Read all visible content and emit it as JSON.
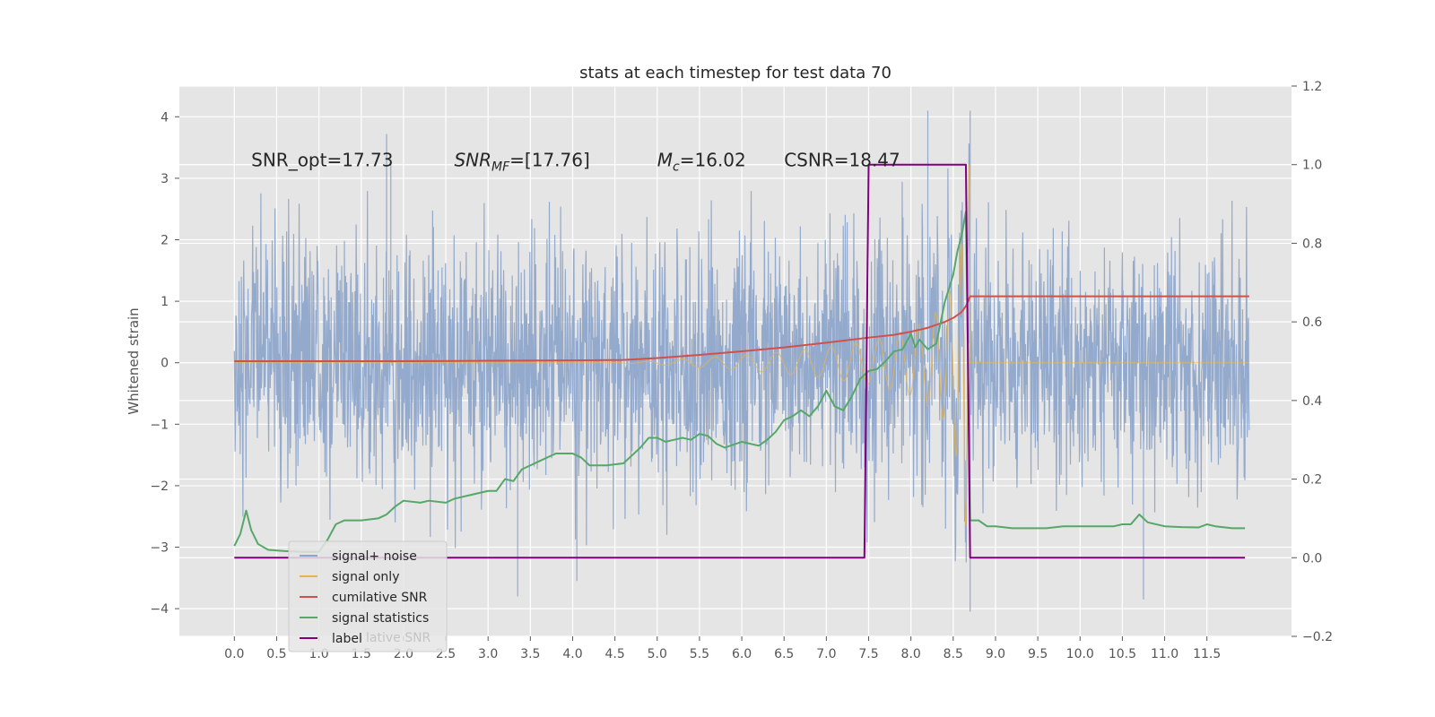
{
  "chart_data": {
    "type": "line",
    "title": "stats at each timestep for test data 70",
    "ylabel": "Whitened strain",
    "xlim": [
      -0.65,
      12.5
    ],
    "ylim": [
      -4.45,
      4.5
    ],
    "y2lim": [
      -0.2,
      1.2
    ],
    "grid": true,
    "legend_placement": "lower-left",
    "xticks": [
      0.0,
      0.5,
      1.0,
      1.5,
      2.0,
      2.5,
      3.0,
      3.5,
      4.0,
      4.5,
      5.0,
      5.5,
      6.0,
      6.5,
      7.0,
      7.5,
      8.0,
      8.5,
      9.0,
      9.5,
      10.0,
      10.5,
      11.0,
      11.5
    ],
    "xtick_labels": [
      "0.0",
      "0.5",
      "1.0",
      "1.5",
      "2.0",
      "2.5",
      "3.0",
      "3.5",
      "4.0",
      "4.5",
      "5.0",
      "5.5",
      "6.0",
      "6.5",
      "7.0",
      "7.5",
      "8.0",
      "8.5",
      "9.0",
      "9.5",
      "10.0",
      "10.5",
      "11.0",
      "11.5"
    ],
    "yticks": [
      -4,
      -3,
      -2,
      -1,
      0,
      1,
      2,
      3,
      4
    ],
    "ytick_labels": [
      "−4",
      "−3",
      "−2",
      "−1",
      "0",
      "1",
      "2",
      "3",
      "4"
    ],
    "y2ticks": [
      -0.2,
      0.0,
      0.2,
      0.4,
      0.6,
      0.8,
      1.0,
      1.2
    ],
    "y2tick_labels": [
      "−0.2",
      "0.0",
      "0.2",
      "0.4",
      "0.6",
      "0.8",
      "1.0",
      "1.2"
    ],
    "annotations": [
      {
        "text": "SNR_opt=17.73",
        "x": 0.2,
        "y": 3.3
      },
      {
        "text": "SNR_MF=[17.76]",
        "x": 2.6,
        "y": 3.3
      },
      {
        "text": "M_c=16.02",
        "x": 5.0,
        "y": 3.3
      },
      {
        "text": "CSNR=18.47",
        "x": 6.5,
        "y": 3.3
      }
    ],
    "noise_series": {
      "name": "signal+ noise",
      "color": "#8fa6cb",
      "x_start": 0.0,
      "x_end": 12.0,
      "typical_amplitude": 1.9,
      "max_peaks": [
        {
          "x": 1.8,
          "y": 3.72
        },
        {
          "x": 1.85,
          "y": 3.3
        },
        {
          "x": 3.35,
          "y": -3.8
        },
        {
          "x": 4.05,
          "y": -3.55
        },
        {
          "x": 6.0,
          "y": 1.05
        },
        {
          "x": 6.0,
          "y": -1.6
        },
        {
          "x": 8.2,
          "y": 4.1
        },
        {
          "x": 8.7,
          "y": 4.1
        },
        {
          "x": 8.7,
          "y": -4.05
        },
        {
          "x": 10.75,
          "y": -3.85
        }
      ]
    },
    "signal_envelope": {
      "name": "signal only",
      "color": "#e6b34d",
      "x": [
        4.5,
        5.0,
        5.5,
        6.0,
        6.5,
        7.0,
        7.5,
        7.8,
        8.0,
        8.2,
        8.4,
        8.5,
        8.6,
        8.65,
        8.7
      ],
      "amplitude": [
        0.0,
        0.03,
        0.08,
        0.12,
        0.18,
        0.25,
        0.35,
        0.45,
        0.55,
        0.7,
        0.95,
        1.3,
        2.0,
        2.7,
        3.4
      ]
    },
    "series": [
      {
        "name": "cumilative SNR",
        "color": "#d0504a",
        "axis": "right",
        "x": [
          0.0,
          1.0,
          2.0,
          3.0,
          4.0,
          4.6,
          5.0,
          5.5,
          6.0,
          6.5,
          7.0,
          7.5,
          7.8,
          8.0,
          8.2,
          8.4,
          8.5,
          8.6,
          8.65,
          8.7,
          9.0,
          10.0,
          11.0,
          12.0
        ],
        "values": [
          0.5,
          0.5,
          0.5,
          0.501,
          0.502,
          0.503,
          0.508,
          0.516,
          0.525,
          0.535,
          0.547,
          0.56,
          0.567,
          0.575,
          0.585,
          0.6,
          0.61,
          0.625,
          0.64,
          0.665,
          0.665,
          0.665,
          0.665,
          0.665
        ]
      },
      {
        "name": "signal statistics",
        "color": "#55a868",
        "axis": "right",
        "x": [
          0.0,
          0.07,
          0.14,
          0.2,
          0.28,
          0.4,
          0.6,
          0.8,
          1.0,
          1.1,
          1.2,
          1.3,
          1.5,
          1.7,
          1.8,
          1.9,
          2.0,
          2.2,
          2.3,
          2.5,
          2.6,
          2.8,
          3.0,
          3.1,
          3.2,
          3.3,
          3.4,
          3.5,
          3.6,
          3.8,
          4.0,
          4.1,
          4.2,
          4.4,
          4.6,
          4.8,
          4.9,
          5.0,
          5.1,
          5.2,
          5.3,
          5.4,
          5.5,
          5.6,
          5.7,
          5.8,
          6.0,
          6.1,
          6.2,
          6.3,
          6.4,
          6.5,
          6.6,
          6.7,
          6.8,
          6.9,
          7.0,
          7.05,
          7.1,
          7.2,
          7.3,
          7.4,
          7.5,
          7.6,
          7.7,
          7.8,
          7.9,
          8.0,
          8.05,
          8.1,
          8.2,
          8.3,
          8.4,
          8.5,
          8.55,
          8.6,
          8.65,
          8.7,
          8.8,
          8.9,
          9.0,
          9.2,
          9.4,
          9.6,
          9.8,
          10.0,
          10.2,
          10.4,
          10.5,
          10.6,
          10.7,
          10.8,
          11.0,
          11.2,
          11.4,
          11.5,
          11.6,
          11.8,
          11.95
        ],
        "values": [
          0.03,
          0.06,
          0.12,
          0.07,
          0.035,
          0.02,
          0.017,
          0.015,
          0.015,
          0.045,
          0.085,
          0.095,
          0.095,
          0.1,
          0.11,
          0.13,
          0.145,
          0.14,
          0.145,
          0.14,
          0.15,
          0.16,
          0.17,
          0.17,
          0.2,
          0.195,
          0.225,
          0.235,
          0.245,
          0.265,
          0.265,
          0.255,
          0.235,
          0.235,
          0.24,
          0.28,
          0.305,
          0.305,
          0.295,
          0.3,
          0.305,
          0.3,
          0.315,
          0.31,
          0.29,
          0.28,
          0.295,
          0.29,
          0.285,
          0.3,
          0.32,
          0.35,
          0.36,
          0.375,
          0.36,
          0.385,
          0.425,
          0.405,
          0.385,
          0.375,
          0.41,
          0.455,
          0.475,
          0.48,
          0.5,
          0.525,
          0.53,
          0.57,
          0.535,
          0.555,
          0.53,
          0.545,
          0.65,
          0.72,
          0.78,
          0.82,
          0.88,
          0.095,
          0.095,
          0.08,
          0.08,
          0.075,
          0.075,
          0.075,
          0.08,
          0.08,
          0.08,
          0.08,
          0.085,
          0.085,
          0.11,
          0.09,
          0.08,
          0.078,
          0.077,
          0.085,
          0.08,
          0.075,
          0.075
        ]
      },
      {
        "name": "label",
        "color": "#800080",
        "axis": "right",
        "x": [
          0.0,
          7.45,
          7.5,
          8.65,
          8.7,
          11.95
        ],
        "values": [
          0.0,
          0.0,
          1.0,
          1.0,
          0.0,
          0.0
        ]
      }
    ],
    "legend": [
      {
        "label": "signal+ noise",
        "color": "#8fa6cb"
      },
      {
        "label": "signal only",
        "color": "#e6b34d"
      },
      {
        "label": "cumilative SNR",
        "color": "#d0504a"
      },
      {
        "label": "signal statistics",
        "color": "#55a868"
      },
      {
        "label": "label",
        "color": "#800080"
      }
    ],
    "legend_ghost_text": "lative SNR"
  }
}
